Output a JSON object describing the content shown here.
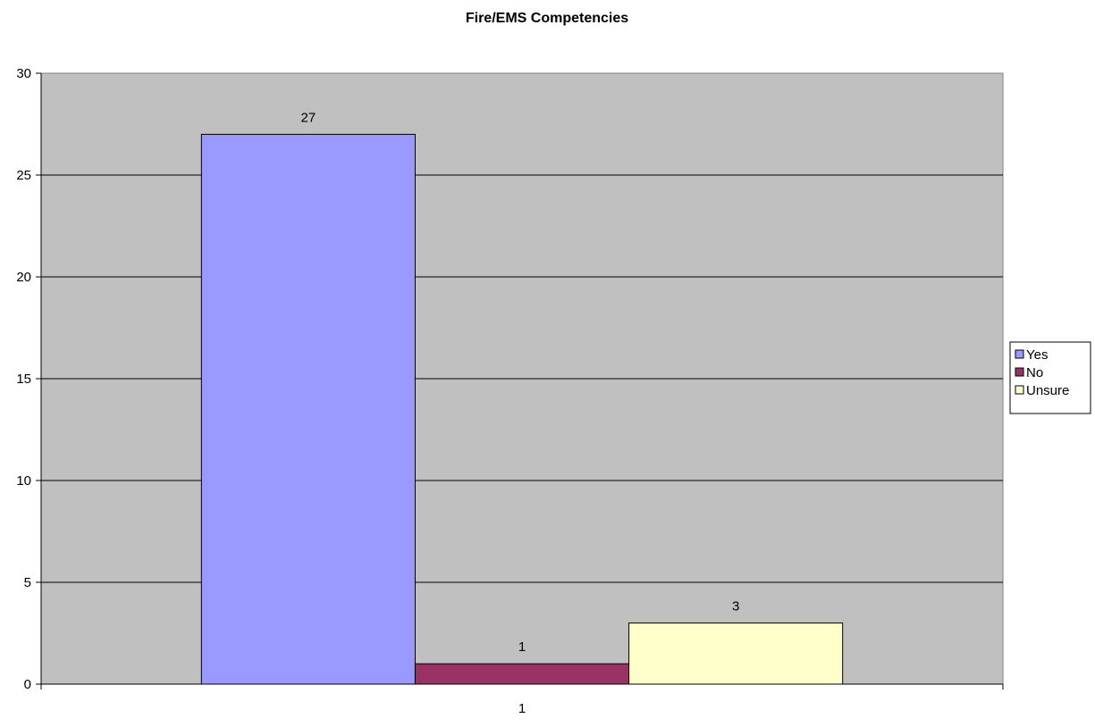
{
  "chart_data": {
    "type": "bar",
    "title": "Fire/EMS Competencies",
    "xlabel": "",
    "ylabel": "",
    "categories": [
      "1"
    ],
    "series": [
      {
        "name": "Yes",
        "values": [
          27
        ],
        "color": "#9999ff"
      },
      {
        "name": "No",
        "values": [
          1
        ],
        "color": "#993366"
      },
      {
        "name": "Unsure",
        "values": [
          3
        ],
        "color": "#ffffcc"
      }
    ],
    "ylim": [
      0,
      30
    ],
    "yticks": [
      0,
      5,
      10,
      15,
      20,
      25,
      30
    ],
    "grid": true,
    "legend": "right",
    "plot_background": "#c0c0c0",
    "data_labels": true
  }
}
